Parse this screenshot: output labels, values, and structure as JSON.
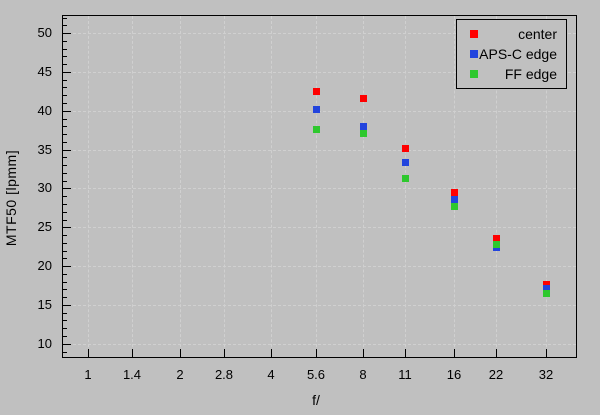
{
  "colors": {
    "background": "#c0c0c0",
    "axis": "#000000",
    "grid": "#d0d0d0",
    "text": "#000000",
    "series_center": "#ff0000",
    "series_apsc_edge": "#2244dd",
    "series_ff_edge": "#2ec82e"
  },
  "chart_data": {
    "type": "scatter",
    "title": "",
    "xlabel": "f/",
    "ylabel": "MTF50 [lpmm]",
    "x_scale": "log2-fstops",
    "x_tick_labels": [
      "1",
      "1.4",
      "2",
      "2.8",
      "4",
      "5.6",
      "8",
      "11",
      "16",
      "22",
      "32"
    ],
    "x_tick_values": [
      1,
      1.4,
      2,
      2.8,
      4,
      5.6,
      8,
      11,
      16,
      22,
      32
    ],
    "y_ticks_major": [
      10,
      15,
      20,
      25,
      30,
      35,
      40,
      45,
      50
    ],
    "y_minor_step": 1,
    "ylim": [
      8.3,
      52.2
    ],
    "grid": "dashed lines at major ticks, both axes",
    "legend_position": "top-right",
    "legend_entries": [
      "center",
      "APS-C edge",
      "FF edge"
    ],
    "categories": [
      5.6,
      8,
      11,
      16,
      22,
      32
    ],
    "series": [
      {
        "name": "center",
        "color": "#ff0000",
        "marker": "square",
        "values": [
          42.6,
          41.6,
          35.2,
          29.5,
          23.6,
          17.7
        ]
      },
      {
        "name": "APS-C edge",
        "color": "#2244dd",
        "marker": "square",
        "values": [
          40.2,
          38.1,
          33.4,
          28.6,
          22.4,
          17.2
        ]
      },
      {
        "name": "FF edge",
        "color": "#2ec82e",
        "marker": "square",
        "values": [
          37.6,
          37.2,
          31.3,
          27.7,
          22.8,
          16.6
        ]
      }
    ]
  }
}
